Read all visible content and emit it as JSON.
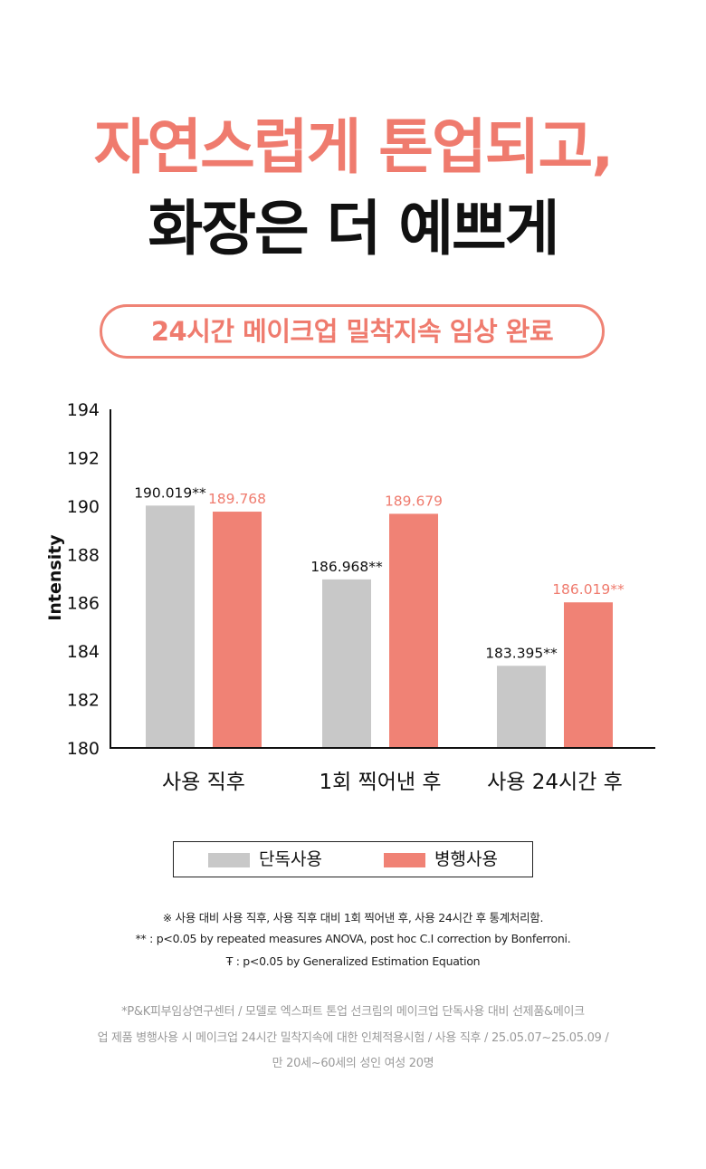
{
  "headline": {
    "line1": "자연스럽게 톤업되고,",
    "line2": "화장은 더 예쁘게"
  },
  "badge": "24시간 메이크업 밀착지속 임상 완료",
  "chart_data": {
    "type": "bar",
    "ylabel": "Intensity",
    "ylim": [
      180,
      194
    ],
    "yticks": [
      180,
      182,
      184,
      186,
      188,
      190,
      192,
      194
    ],
    "categories": [
      "사용 직후",
      "1회 찍어낸 후",
      "사용 24시간 후"
    ],
    "grid": false,
    "legend_position": "bottom",
    "series": [
      {
        "name": "단독사용",
        "color": "#c8c8c8",
        "label_color": "#111111",
        "values": [
          190.019,
          186.968,
          183.395
        ],
        "labels": [
          "190.019**",
          "186.968**",
          "183.395**"
        ]
      },
      {
        "name": "병행사용",
        "color": "#f08275",
        "label_color": "#ef7b6e",
        "values": [
          189.768,
          189.679,
          186.019
        ],
        "labels": [
          "189.768",
          "189.679",
          "186.019**"
        ]
      }
    ]
  },
  "notes": [
    "※ 사용  대비 사용 직후, 사용 직후 대비 1회 찍어낸 후, 사용 24시간 후 통계처리함.",
    "** : p<0.05 by repeated measures ANOVA, post hoc C.I correction by Bonferroni.",
    "Ŧ : p<0.05 by Generalized Estimation Equation"
  ],
  "source": [
    "*P&K피부임상연구센터 / 모델로 엑스퍼트 톤업 선크림의 메이크업 단독사용 대비 선제품&메이크",
    "업 제품 병행사용 시 메이크업 24시간 밀착지속에 대한 인체적용시험 / 사용 직후 / 25.05.07~25.05.09 /",
    "만 20세~60세의 성인 여성 20명"
  ]
}
